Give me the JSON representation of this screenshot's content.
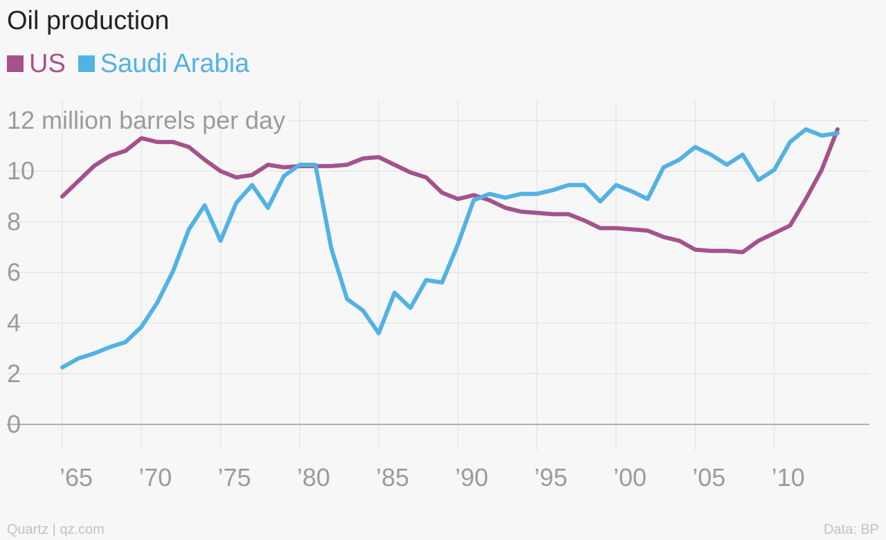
{
  "chart_data": {
    "type": "line",
    "title": "Oil production",
    "ylabel": "million barrels per day",
    "ylim": [
      0,
      12
    ],
    "yticks": [
      0,
      2,
      4,
      6,
      8,
      10,
      12
    ],
    "xlim": [
      1965,
      2014
    ],
    "xticks": [
      1965,
      1970,
      1975,
      1980,
      1985,
      1990,
      1995,
      2000,
      2005,
      2010
    ],
    "xtick_labels": [
      "’65",
      "’70",
      "’75",
      "’80",
      "’85",
      "’90",
      "’95",
      "’00",
      "’05",
      "’10"
    ],
    "grid": true,
    "legend_position": "top-left",
    "x": [
      1965,
      1966,
      1967,
      1968,
      1969,
      1970,
      1971,
      1972,
      1973,
      1974,
      1975,
      1976,
      1977,
      1978,
      1979,
      1980,
      1981,
      1982,
      1983,
      1984,
      1985,
      1986,
      1987,
      1988,
      1989,
      1990,
      1991,
      1992,
      1993,
      1994,
      1995,
      1996,
      1997,
      1998,
      1999,
      2000,
      2001,
      2002,
      2003,
      2004,
      2005,
      2006,
      2007,
      2008,
      2009,
      2010,
      2011,
      2012,
      2013,
      2014
    ],
    "series": [
      {
        "name": "US",
        "color": "#a5528a",
        "values": [
          9.0,
          9.6,
          10.2,
          10.6,
          10.8,
          11.3,
          11.15,
          11.15,
          10.95,
          10.45,
          10.0,
          9.75,
          9.85,
          10.25,
          10.15,
          10.2,
          10.2,
          10.2,
          10.25,
          10.5,
          10.55,
          10.25,
          9.95,
          9.75,
          9.15,
          8.9,
          9.05,
          8.85,
          8.55,
          8.4,
          8.35,
          8.3,
          8.3,
          8.05,
          7.75,
          7.75,
          7.7,
          7.65,
          7.4,
          7.25,
          6.9,
          6.85,
          6.85,
          6.8,
          7.25,
          7.55,
          7.85,
          8.9,
          10.05,
          11.65
        ]
      },
      {
        "name": "Saudi Arabia",
        "color": "#51b2e5",
        "values": [
          2.25,
          2.6,
          2.8,
          3.05,
          3.25,
          3.85,
          4.8,
          6.05,
          7.7,
          8.65,
          7.25,
          8.75,
          9.45,
          8.55,
          9.8,
          10.25,
          10.25,
          6.95,
          4.95,
          4.5,
          3.6,
          5.2,
          4.6,
          5.7,
          5.6,
          7.1,
          8.85,
          9.1,
          8.95,
          9.1,
          9.1,
          9.25,
          9.45,
          9.45,
          8.8,
          9.45,
          9.2,
          8.9,
          10.15,
          10.45,
          10.95,
          10.65,
          10.25,
          10.65,
          9.65,
          10.05,
          11.15,
          11.65,
          11.4,
          11.5
        ]
      }
    ]
  },
  "footer": {
    "source_left": "Quartz | qz.com",
    "source_right": "Data: BP"
  }
}
